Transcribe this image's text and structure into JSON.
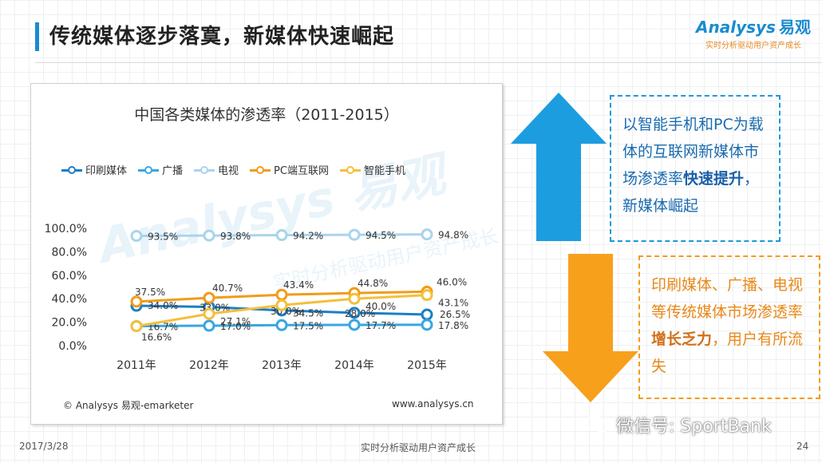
{
  "header": {
    "title": "传统媒体逐步落寞，新媒体快速崛起",
    "logo_text": "Analysys",
    "logo_cn": "易观",
    "logo_tagline": "实时分析驱动用户资产成长"
  },
  "colors": {
    "accent_blue": "#1a8bd0",
    "accent_orange": "#f39a1e",
    "print": "#1b7fc4",
    "radio": "#3aa6e0",
    "tv": "#a9d4ec",
    "pc": "#f29b1a",
    "smartphone": "#f4bf3a"
  },
  "chart_data": {
    "type": "line",
    "title": "中国各类媒体的渗透率（2011-2015）",
    "categories": [
      "2011年",
      "2012年",
      "2013年",
      "2014年",
      "2015年"
    ],
    "ylim": [
      0,
      100
    ],
    "yticks": [
      "0.0%",
      "20.0%",
      "40.0%",
      "60.0%",
      "80.0%",
      "100.0%"
    ],
    "grid": false,
    "legend_position": "top",
    "series": [
      {
        "name": "印刷媒体",
        "color": "#1b7fc4",
        "values": [
          34.0,
          33.0,
          30.0,
          28.0,
          26.5
        ],
        "labels": [
          "34.0%",
          "33.0%",
          "30.0%",
          "28.0%",
          "26.5%"
        ]
      },
      {
        "name": "广播",
        "color": "#3aa6e0",
        "values": [
          16.7,
          17.0,
          17.5,
          17.7,
          17.8
        ],
        "labels": [
          "16.7%",
          "17.0%",
          "17.5%",
          "17.7%",
          "17.8%"
        ]
      },
      {
        "name": "电视",
        "color": "#a9d4ec",
        "values": [
          93.5,
          93.8,
          94.2,
          94.5,
          94.8
        ],
        "labels": [
          "93.5%",
          "93.8%",
          "94.2%",
          "94.5%",
          "94.8%"
        ]
      },
      {
        "name": "PC端互联网",
        "color": "#f29b1a",
        "values": [
          37.5,
          40.7,
          43.4,
          44.8,
          46.0
        ],
        "labels": [
          "37.5%",
          "40.7%",
          "43.4%",
          "44.8%",
          "46.0%"
        ]
      },
      {
        "name": "智能手机",
        "color": "#f4bf3a",
        "values": [
          16.6,
          27.1,
          34.5,
          40.0,
          43.1
        ],
        "labels": [
          "16.6%",
          "27.1%",
          "34.5%",
          "40.0%",
          "43.1%"
        ]
      }
    ],
    "source_left": "© Analysys 易观-emarketer",
    "source_right": "www.analysys.cn"
  },
  "watermark": {
    "text": "Analysys 易观",
    "tagline": "实时分析驱动用户资产成长"
  },
  "callouts": {
    "up": {
      "before": "以智能手机和PC为载体的互联网新媒体市场渗透率",
      "emphasis": "快速提升",
      "after": "，新媒体崛起"
    },
    "down": {
      "before": "印刷媒体、广播、电视等传统媒体市场渗透率",
      "emphasis": "增长乏力",
      "after": "，用户有所流失"
    }
  },
  "footer": {
    "date": "2017/3/28",
    "slogan": "实时分析驱动用户资产成长",
    "page": "24",
    "wechat": "微信号: SportBank"
  }
}
